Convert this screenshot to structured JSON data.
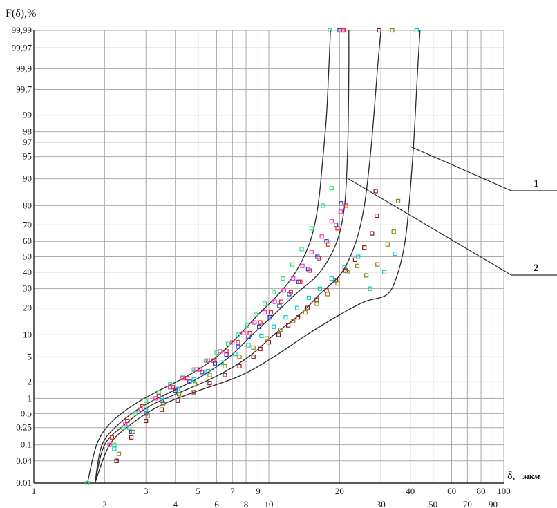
{
  "chart_data": {
    "type": "scatter",
    "title": "",
    "ylabel": "F(δ),%",
    "xlabel": "δ,",
    "xunit": "мкм",
    "x_scale": "log",
    "y_scale": "probability",
    "xlim": [
      1,
      100
    ],
    "ylim": [
      0.01,
      99.99
    ],
    "grid": true,
    "x_ticks_upper": [
      "1",
      "3",
      "5",
      "7",
      "9",
      "20",
      "40",
      "60",
      "80",
      "100"
    ],
    "x_ticks_lower": [
      "2",
      "4",
      "6",
      "8",
      "10",
      "30",
      "50",
      "70",
      "90"
    ],
    "y_ticks": [
      "0.01",
      "0.04",
      "0.1",
      "0.25",
      "0.5",
      "1",
      "2",
      "5",
      "10",
      "20",
      "30",
      "40",
      "50",
      "60",
      "70",
      "80",
      "90",
      "95",
      "97",
      "98",
      "99",
      "99,7",
      "99,9",
      "99,97",
      "99,99"
    ],
    "callouts": [
      "1",
      "2"
    ],
    "envelope_curves": [
      {
        "callout": "2",
        "points": [
          [
            1.69,
            0.01
          ],
          [
            1.85,
            0.1
          ],
          [
            2.1,
            0.3
          ],
          [
            2.6,
            0.7
          ],
          [
            3.3,
            1.3
          ],
          [
            4.5,
            2.5
          ],
          [
            6.0,
            5
          ],
          [
            7.5,
            10
          ],
          [
            9.0,
            17
          ],
          [
            11.0,
            27
          ],
          [
            13.0,
            40
          ],
          [
            15.0,
            60
          ],
          [
            16.2,
            80
          ],
          [
            17.0,
            95
          ],
          [
            17.6,
            99
          ],
          [
            18.0,
            99.9
          ],
          [
            18.3,
            99.99
          ]
        ]
      },
      {
        "callout": "2",
        "points": [
          [
            1.82,
            0.01
          ],
          [
            1.95,
            0.1
          ],
          [
            2.3,
            0.3
          ],
          [
            2.9,
            0.7
          ],
          [
            3.8,
            1.3
          ],
          [
            5.2,
            2.5
          ],
          [
            6.8,
            5
          ],
          [
            8.5,
            10
          ],
          [
            10.5,
            17
          ],
          [
            13.0,
            27
          ],
          [
            16.5,
            40
          ],
          [
            19.5,
            60
          ],
          [
            21.0,
            80
          ],
          [
            21.6,
            95
          ],
          [
            21.8,
            99
          ],
          [
            21.9,
            99.9
          ],
          [
            21.9,
            99.99
          ]
        ]
      },
      {
        "callout": "1",
        "points": [
          [
            1.82,
            0.01
          ],
          [
            2.0,
            0.1
          ],
          [
            2.45,
            0.3
          ],
          [
            3.1,
            0.7
          ],
          [
            4.2,
            1.3
          ],
          [
            6.0,
            2.5
          ],
          [
            8.2,
            5
          ],
          [
            10.5,
            10
          ],
          [
            13.5,
            17
          ],
          [
            16.5,
            27
          ],
          [
            20.5,
            40
          ],
          [
            23.5,
            60
          ],
          [
            25.5,
            80
          ],
          [
            27.0,
            95
          ],
          [
            28.0,
            99
          ],
          [
            29.0,
            99.9
          ],
          [
            30.0,
            99.99
          ]
        ]
      },
      {
        "callout": "1",
        "points": [
          [
            1.82,
            0.01
          ],
          [
            2.1,
            0.1
          ],
          [
            2.6,
            0.3
          ],
          [
            3.4,
            0.7
          ],
          [
            4.8,
            1.3
          ],
          [
            7.5,
            2.5
          ],
          [
            10.5,
            5
          ],
          [
            14.5,
            10
          ],
          [
            20.0,
            17
          ],
          [
            25.5,
            23
          ],
          [
            32.0,
            27
          ],
          [
            35.5,
            40
          ],
          [
            38.0,
            60
          ],
          [
            39.5,
            80
          ],
          [
            41.0,
            95
          ],
          [
            42.0,
            99
          ],
          [
            43.0,
            99.9
          ],
          [
            44.0,
            99.99
          ]
        ]
      }
    ],
    "series": [
      {
        "color": "#33e07a",
        "points": [
          [
            1.69,
            0.01
          ],
          [
            2.2,
            0.1
          ],
          [
            2.4,
            0.25
          ],
          [
            2.7,
            0.5
          ],
          [
            3.0,
            0.9
          ],
          [
            3.4,
            1.3
          ],
          [
            3.8,
            1.8
          ],
          [
            4.3,
            2.4
          ],
          [
            4.8,
            3.2
          ],
          [
            5.4,
            4.4
          ],
          [
            6.0,
            5.8
          ],
          [
            6.7,
            7.6
          ],
          [
            7.4,
            10
          ],
          [
            8.1,
            13
          ],
          [
            8.8,
            17
          ],
          [
            9.6,
            22
          ],
          [
            10.5,
            28
          ],
          [
            11.5,
            36
          ],
          [
            12.6,
            45
          ],
          [
            13.8,
            55
          ],
          [
            15.2,
            68
          ],
          [
            17.0,
            80
          ],
          [
            18.5,
            87
          ],
          [
            18.2,
            99.99
          ]
        ]
      },
      {
        "color": "#ff33cc",
        "points": [
          [
            2.1,
            0.1
          ],
          [
            2.45,
            0.3
          ],
          [
            2.85,
            0.6
          ],
          [
            3.3,
            1.0
          ],
          [
            3.8,
            1.6
          ],
          [
            4.3,
            2.3
          ],
          [
            4.9,
            3.2
          ],
          [
            5.5,
            4.4
          ],
          [
            6.2,
            6
          ],
          [
            7.0,
            8
          ],
          [
            7.8,
            10.5
          ],
          [
            8.7,
            14
          ],
          [
            9.6,
            18
          ],
          [
            10.6,
            23
          ],
          [
            11.6,
            29
          ],
          [
            12.7,
            36
          ],
          [
            13.9,
            44
          ],
          [
            15.2,
            53
          ],
          [
            16.8,
            63
          ],
          [
            18.5,
            72
          ],
          [
            20.2,
            77
          ],
          [
            20.6,
            99.99
          ]
        ]
      },
      {
        "color": "#2233ee",
        "points": [
          [
            2.25,
            0.04
          ],
          [
            2.6,
            0.2
          ],
          [
            3.0,
            0.5
          ],
          [
            3.5,
            0.9
          ],
          [
            4.0,
            1.4
          ],
          [
            4.6,
            2.0
          ],
          [
            5.2,
            2.9
          ],
          [
            5.9,
            4.0
          ],
          [
            6.6,
            5.4
          ],
          [
            7.4,
            7
          ],
          [
            8.2,
            9.5
          ],
          [
            9.1,
            12.5
          ],
          [
            10.1,
            16
          ],
          [
            11.1,
            21
          ],
          [
            12.2,
            27
          ],
          [
            13.4,
            34
          ],
          [
            14.7,
            42
          ],
          [
            16.1,
            50
          ],
          [
            17.6,
            60
          ],
          [
            19.3,
            70
          ],
          [
            20.3,
            81
          ],
          [
            20.0,
            99.99
          ]
        ]
      },
      {
        "color": "#ee2222",
        "points": [
          [
            2.15,
            0.15
          ],
          [
            2.5,
            0.35
          ],
          [
            2.9,
            0.7
          ],
          [
            3.4,
            1.1
          ],
          [
            3.9,
            1.6
          ],
          [
            4.5,
            2.3
          ],
          [
            5.1,
            3.2
          ],
          [
            5.8,
            4.4
          ],
          [
            6.6,
            6
          ],
          [
            7.4,
            8
          ],
          [
            8.3,
            10.5
          ],
          [
            9.2,
            14
          ],
          [
            10.2,
            18
          ],
          [
            11.3,
            23
          ],
          [
            12.4,
            28
          ],
          [
            13.6,
            34
          ],
          [
            14.9,
            41
          ],
          [
            16.3,
            49
          ],
          [
            17.9,
            58
          ],
          [
            19.6,
            68
          ],
          [
            21.3,
            80
          ],
          [
            20.8,
            99.99
          ]
        ]
      },
      {
        "color": "#11c9c9",
        "points": [
          [
            2.2,
            0.08
          ],
          [
            2.55,
            0.25
          ],
          [
            3.0,
            0.6
          ],
          [
            3.5,
            1.0
          ],
          [
            4.1,
            1.5
          ],
          [
            4.8,
            2.2
          ],
          [
            5.5,
            3.0
          ],
          [
            6.3,
            4.1
          ],
          [
            7.2,
            5.5
          ],
          [
            8.2,
            7.3
          ],
          [
            9.3,
            9.7
          ],
          [
            10.5,
            12.5
          ],
          [
            11.8,
            16
          ],
          [
            13.2,
            20
          ],
          [
            14.8,
            25
          ],
          [
            16.5,
            30
          ],
          [
            18.5,
            36
          ],
          [
            21.0,
            43
          ],
          [
            24.0,
            50
          ],
          [
            27.0,
            30
          ],
          [
            31.0,
            40
          ],
          [
            34.5,
            52
          ],
          [
            42.5,
            99.99
          ]
        ]
      },
      {
        "color": "#8b1a1a",
        "points": [
          [
            2.25,
            0.04
          ],
          [
            2.6,
            0.15
          ],
          [
            3.0,
            0.35
          ],
          [
            3.5,
            0.6
          ],
          [
            4.1,
            0.9
          ],
          [
            4.8,
            1.3
          ],
          [
            5.6,
            1.9
          ],
          [
            6.5,
            2.6
          ],
          [
            7.5,
            3.6
          ],
          [
            8.6,
            5
          ],
          [
            9.2,
            6.5
          ],
          [
            10.0,
            8
          ],
          [
            11.0,
            10
          ],
          [
            12.1,
            13
          ],
          [
            13.3,
            16
          ],
          [
            14.6,
            20
          ],
          [
            16.0,
            24
          ],
          [
            17.6,
            29
          ],
          [
            19.3,
            35
          ],
          [
            21.2,
            41
          ],
          [
            23.3,
            48
          ],
          [
            25.5,
            56
          ],
          [
            27.5,
            65
          ],
          [
            28.8,
            75
          ],
          [
            28.5,
            86
          ],
          [
            29.5,
            99.99
          ]
        ]
      },
      {
        "color": "#8a8a10",
        "points": [
          [
            2.3,
            0.06
          ],
          [
            2.65,
            0.2
          ],
          [
            3.05,
            0.45
          ],
          [
            3.55,
            0.8
          ],
          [
            4.15,
            1.2
          ],
          [
            4.85,
            1.8
          ],
          [
            5.6,
            2.6
          ],
          [
            6.5,
            3.6
          ],
          [
            7.5,
            5
          ],
          [
            8.6,
            6.8
          ],
          [
            9.8,
            9
          ],
          [
            11.2,
            11.5
          ],
          [
            12.7,
            14.5
          ],
          [
            14.3,
            18
          ],
          [
            16.0,
            22
          ],
          [
            17.8,
            27
          ],
          [
            19.6,
            33
          ],
          [
            21.6,
            40
          ],
          [
            23.8,
            44
          ],
          [
            26.0,
            38
          ],
          [
            29.0,
            45
          ],
          [
            32.0,
            58
          ],
          [
            34.0,
            66
          ],
          [
            35.5,
            82
          ],
          [
            33.5,
            99.99
          ]
        ]
      }
    ]
  }
}
